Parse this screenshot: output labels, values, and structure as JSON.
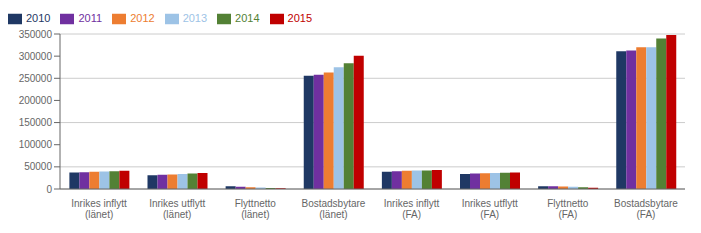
{
  "chart_data": {
    "type": "bar",
    "categories": [
      "Inrikes inflytt\n(länet)",
      "Inrikes utflytt\n(länet)",
      "Flyttnetto\n(länet)",
      "Bostadsbytare\n(länet)",
      "Inrikes inflytt\n(FA)",
      "Inrikes utflytt\n(FA)",
      "Flyttnetto\n(FA)",
      "Bostadsbytare\n(FA)"
    ],
    "series": [
      {
        "name": "2010",
        "color": "#1f3864",
        "values": [
          37000,
          31000,
          6000,
          256000,
          39000,
          34000,
          6000,
          311000
        ]
      },
      {
        "name": "2011",
        "color": "#7030a0",
        "values": [
          38000,
          32000,
          5000,
          258000,
          40000,
          35000,
          6000,
          313000
        ]
      },
      {
        "name": "2012",
        "color": "#ed7d31",
        "values": [
          39000,
          33000,
          4000,
          263000,
          41000,
          35500,
          5500,
          320000
        ]
      },
      {
        "name": "2013",
        "color": "#9dc3e6",
        "values": [
          39500,
          34000,
          3500,
          275000,
          41500,
          36000,
          5000,
          320000
        ]
      },
      {
        "name": "2014",
        "color": "#538135",
        "values": [
          40000,
          35000,
          2500,
          284000,
          42000,
          36500,
          4000,
          340000
        ]
      },
      {
        "name": "2015",
        "color": "#c00000",
        "values": [
          41000,
          36000,
          1500,
          301000,
          43000,
          37500,
          3000,
          348000
        ]
      }
    ],
    "ylim": [
      0,
      350000
    ],
    "yticks": [
      0,
      50000,
      100000,
      150000,
      200000,
      250000,
      300000,
      350000
    ],
    "grid": true,
    "legend": "upper left"
  }
}
